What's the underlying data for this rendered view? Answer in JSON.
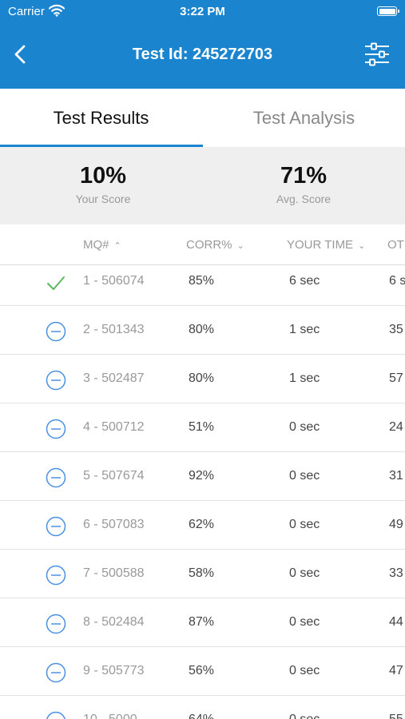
{
  "status_bar": {
    "carrier": "Carrier",
    "time": "3:22 PM"
  },
  "header": {
    "title": "Test Id: 245272703"
  },
  "tabs": [
    {
      "label": "Test Results",
      "active": true
    },
    {
      "label": "Test Analysis",
      "active": false
    }
  ],
  "scores": {
    "your_score": {
      "value": "10%",
      "label": "Your Score"
    },
    "avg_score": {
      "value": "71%",
      "label": "Avg. Score"
    }
  },
  "table": {
    "columns": [
      "MQ#",
      "CORR%",
      "YOUR TIME",
      "OT"
    ],
    "rows": [
      {
        "status": "correct",
        "mq": "1 - 506074",
        "corr": "85%",
        "time": "6 sec",
        "other": "6 s"
      },
      {
        "status": "skipped",
        "mq": "2 - 501343",
        "corr": "80%",
        "time": "1 sec",
        "other": "35"
      },
      {
        "status": "skipped",
        "mq": "3 - 502487",
        "corr": "80%",
        "time": "1 sec",
        "other": "57"
      },
      {
        "status": "skipped",
        "mq": "4 - 500712",
        "corr": "51%",
        "time": "0 sec",
        "other": "24"
      },
      {
        "status": "skipped",
        "mq": "5 - 507674",
        "corr": "92%",
        "time": "0 sec",
        "other": "31"
      },
      {
        "status": "skipped",
        "mq": "6 - 507083",
        "corr": "62%",
        "time": "0 sec",
        "other": "49"
      },
      {
        "status": "skipped",
        "mq": "7 - 500588",
        "corr": "58%",
        "time": "0 sec",
        "other": "33"
      },
      {
        "status": "skipped",
        "mq": "8 - 502484",
        "corr": "87%",
        "time": "0 sec",
        "other": "44"
      },
      {
        "status": "skipped",
        "mq": "9 - 505773",
        "corr": "56%",
        "time": "0 sec",
        "other": "47"
      },
      {
        "status": "skipped",
        "mq": "10 - 5000",
        "corr": "64%",
        "time": "0 sec",
        "other": "55"
      }
    ]
  },
  "colors": {
    "accent": "#1a84cf",
    "correct": "#5cb85c",
    "skipped": "#4a90e2"
  }
}
